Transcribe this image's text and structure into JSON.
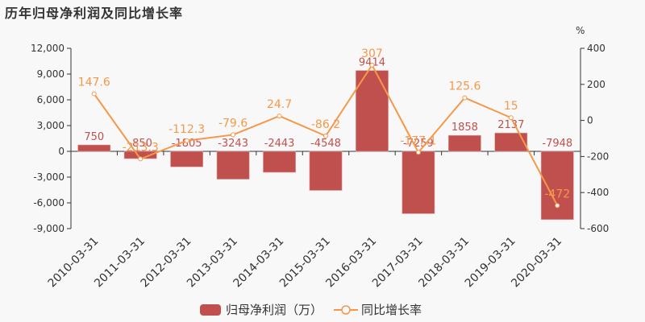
{
  "title": "历年归母净利润及同比增长率",
  "legend": {
    "bar_label": "归母净利润（万）",
    "line_label": "同比增长率"
  },
  "right_axis_unit": "%",
  "colors": {
    "bar": "#c0504d",
    "line": "#f5984a",
    "axis": "#333333",
    "background": "#f8f8f8"
  },
  "chart_data": {
    "type": "bar+line",
    "title": "历年归母净利润及同比增长率",
    "categories": [
      "2010-03-31",
      "2011-03-31",
      "2012-03-31",
      "2013-03-31",
      "2014-03-31",
      "2015-03-31",
      "2016-03-31",
      "2017-03-31",
      "2018-03-31",
      "2019-03-31",
      "2020-03-31"
    ],
    "series": [
      {
        "name": "归母净利润（万）",
        "type": "bar",
        "axis": "left",
        "values": [
          750,
          -850,
          -1805,
          -3243,
          -2443,
          -4548,
          9414,
          -7259,
          1858,
          2137,
          -7948
        ]
      },
      {
        "name": "同比增长率",
        "type": "line",
        "axis": "right",
        "unit": "%",
        "values": [
          147.6,
          -213.3,
          -112.3,
          -79.6,
          24.7,
          -86.2,
          307,
          -177.1,
          125.6,
          15,
          -472
        ]
      }
    ],
    "left_axis": {
      "ylim": [
        -9000,
        12000
      ],
      "ticks": [
        "12,000",
        "9,000",
        "6,000",
        "3,000",
        "0",
        "-3,000",
        "-6,000",
        "-9,000"
      ]
    },
    "right_axis": {
      "ylim": [
        -600,
        400
      ],
      "label": "%",
      "ticks": [
        "400",
        "200",
        "0",
        "-200",
        "-400",
        "-600"
      ]
    },
    "legend_position": "bottom",
    "grid": false
  }
}
